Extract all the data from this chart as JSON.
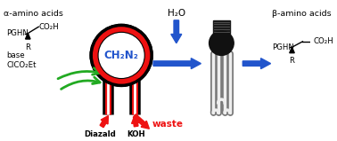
{
  "bg_color": "#ffffff",
  "alpha_amino_label": "α-amino acids",
  "beta_amino_label": "β-amino acids",
  "ch2n2_label": "CH₂N₂",
  "h2o_label": "H₂O",
  "waste_label": "waste",
  "diazald_label": "Diazald",
  "koh_label": "KOH",
  "base_label": "base",
  "clco2et_label": "ClCO₂Et",
  "arrow_blue": "#2255cc",
  "arrow_green": "#22aa22",
  "arrow_red": "#ee1111",
  "ch2n2_color": "#2255cc",
  "red_tube": "#cc0000",
  "black": "#000000",
  "white": "#ffffff",
  "gray_lamp": "#888888",
  "dark_lamp": "#111111",
  "figsize": [
    3.78,
    1.59
  ],
  "dpi": 100
}
